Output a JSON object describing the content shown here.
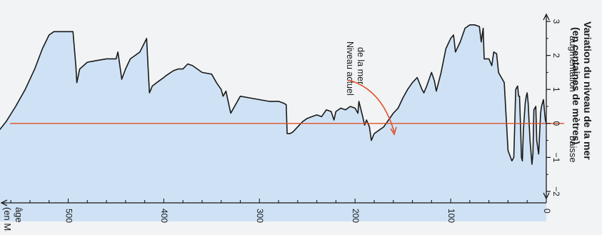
{
  "chart_data": {
    "type": "area",
    "title_lines": [
      "Variation du niveau de la mer",
      "(en centaines de mètres)"
    ],
    "y_direction_labels": {
      "up": "augmentation",
      "down": "baisse"
    },
    "x_axis_label_lines": [
      "âge",
      "(en Ma)"
    ],
    "annotation_lines": [
      "Niveau actuel",
      "de la mer"
    ],
    "x_ticks": [
      0,
      100,
      200,
      300,
      400,
      500
    ],
    "y_ticks": [
      3,
      2,
      1,
      0,
      -1,
      -2
    ],
    "x_range": [
      590,
      0
    ],
    "y_range": [
      -2.3,
      3.4
    ],
    "reference_level": 0,
    "colors": {
      "fill": "#cfe2f5",
      "curve": "#1a1a1a",
      "reference": "#e0502a",
      "axis": "#1a1a1a"
    },
    "series": [
      {
        "x": [
          590,
          575,
          565,
          555,
          545,
          535,
          527,
          520,
          515,
          510,
          500,
          495,
          492,
          491,
          488,
          480,
          470,
          460,
          450,
          448,
          447,
          444,
          440,
          435,
          430,
          425,
          418,
          416,
          415,
          412,
          405,
          400,
          398,
          390,
          385,
          380,
          375,
          370,
          365,
          360,
          350,
          345,
          340,
          338,
          335,
          330,
          320,
          310,
          300,
          290,
          280,
          275,
          272,
          271,
          268,
          265,
          260,
          255,
          250,
          245,
          240,
          235,
          230,
          225,
          222,
          220,
          215,
          210,
          205,
          200,
          197,
          196,
          192,
          190,
          188,
          185,
          183,
          180,
          175,
          170,
          165,
          160,
          155,
          150,
          145,
          140,
          135,
          130,
          128,
          125,
          120,
          117,
          115,
          110,
          105,
          100,
          97,
          95,
          90,
          85,
          80,
          75,
          70,
          68,
          66,
          65,
          60,
          57,
          55,
          52,
          50,
          48,
          47,
          44,
          40,
          36,
          34,
          32,
          30,
          29,
          28,
          27,
          26,
          25,
          24,
          22,
          21,
          20,
          19,
          17,
          15,
          14,
          13,
          11,
          10,
          8,
          6,
          5,
          3,
          2,
          1,
          0
        ],
        "y": [
          -0.6,
          -0.3,
          0.05,
          0.5,
          1.0,
          1.6,
          2.2,
          2.6,
          2.7,
          2.7,
          2.7,
          2.7,
          1.7,
          1.2,
          1.6,
          1.8,
          1.85,
          1.9,
          1.9,
          2.1,
          1.9,
          1.3,
          1.6,
          1.9,
          2.0,
          2.1,
          2.5,
          1.4,
          0.9,
          1.1,
          1.25,
          1.35,
          1.4,
          1.55,
          1.6,
          1.6,
          1.75,
          1.7,
          1.6,
          1.5,
          1.45,
          1.2,
          1.0,
          0.8,
          0.95,
          0.3,
          0.8,
          0.75,
          0.7,
          0.65,
          0.65,
          0.6,
          0.55,
          -0.3,
          -0.3,
          -0.25,
          -0.1,
          0.05,
          0.15,
          0.2,
          0.25,
          0.2,
          0.4,
          0.35,
          0.1,
          0.35,
          0.45,
          0.4,
          0.5,
          0.45,
          0.3,
          0.65,
          0.2,
          -0.05,
          0.1,
          -0.1,
          -0.5,
          -0.3,
          -0.2,
          -0.1,
          0.1,
          0.3,
          0.45,
          0.75,
          1.0,
          1.2,
          1.35,
          1.0,
          0.9,
          1.1,
          1.5,
          1.25,
          0.95,
          1.5,
          2.2,
          2.5,
          2.6,
          2.1,
          2.4,
          2.8,
          2.9,
          2.9,
          2.85,
          2.4,
          2.8,
          1.9,
          1.9,
          1.7,
          2.1,
          2.05,
          1.5,
          1.4,
          1.35,
          1.2,
          -0.8,
          -1.1,
          -1.0,
          1.0,
          1.1,
          0.8,
          0.8,
          0.0,
          -1.0,
          -1.1,
          -0.2,
          0.6,
          0.8,
          0.9,
          0.6,
          -0.5,
          -1.2,
          -0.9,
          0.4,
          0.5,
          -0.5,
          -0.9,
          0.3,
          0.5,
          0.7,
          0.4,
          0.1,
          0.0
        ]
      }
    ]
  }
}
